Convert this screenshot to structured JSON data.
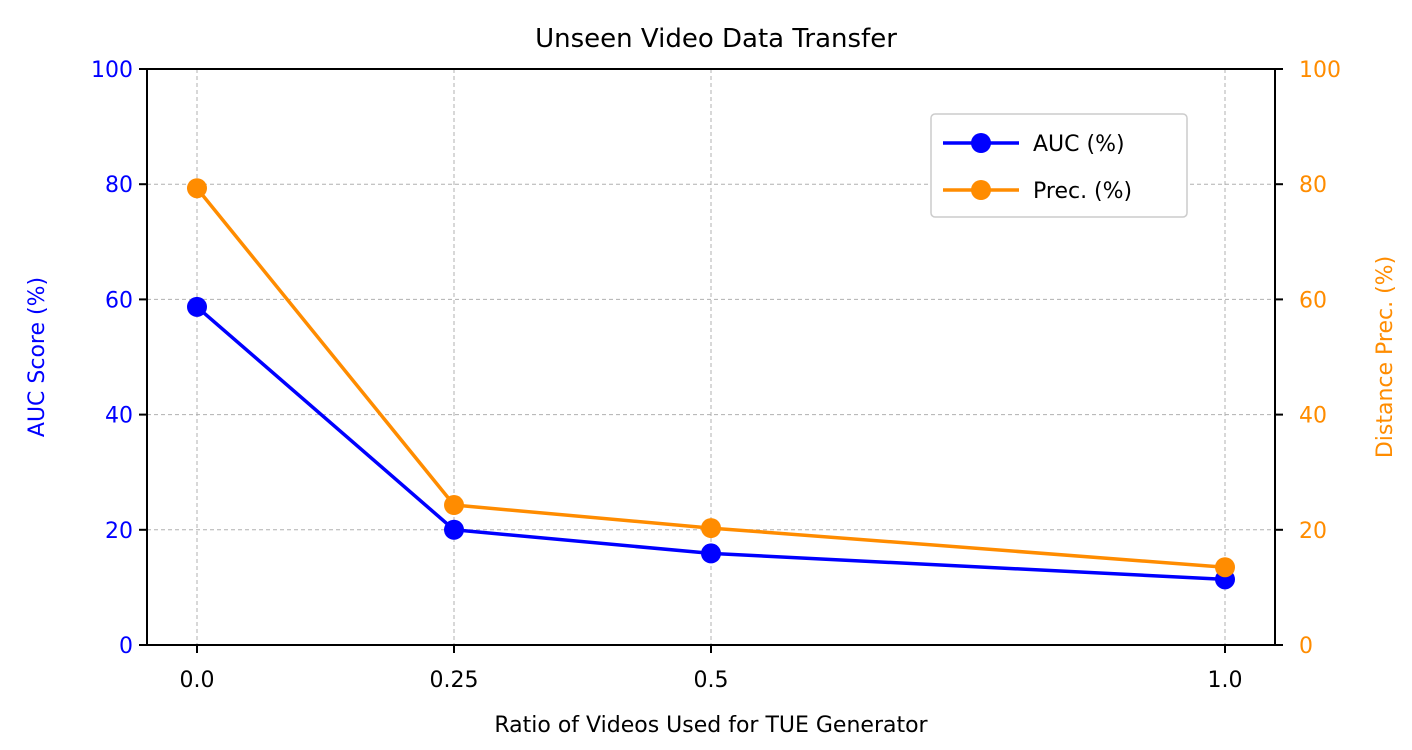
{
  "chart_data": {
    "type": "line",
    "title": "Unseen Video Data Transfer",
    "xlabel": "Ratio of Videos Used for TUE Generator",
    "ylabel_left": "AUC Score (%)",
    "ylabel_right": "Distance Prec. (%)",
    "categories": [
      "0.0",
      "0.25",
      "0.5",
      "1.0"
    ],
    "ylim_left": [
      0,
      100
    ],
    "ylim_right": [
      0,
      100
    ],
    "yticks_left": [
      "0",
      "20",
      "40",
      "60",
      "80",
      "100"
    ],
    "yticks_right": [
      "0",
      "20",
      "40",
      "60",
      "80",
      "100"
    ],
    "grid": true,
    "legend_position": "top-right",
    "series": [
      {
        "name": "AUC (%)",
        "axis": "left",
        "color": "#0000ff",
        "values": [
          58.7,
          20.0,
          15.9,
          11.4
        ]
      },
      {
        "name": "Prec. (%)",
        "axis": "right",
        "color": "#ff8c00",
        "values": [
          79.3,
          24.3,
          20.3,
          13.5
        ]
      }
    ],
    "colors": {
      "left_axis": "#0000ff",
      "right_axis": "#ff8c00"
    }
  }
}
